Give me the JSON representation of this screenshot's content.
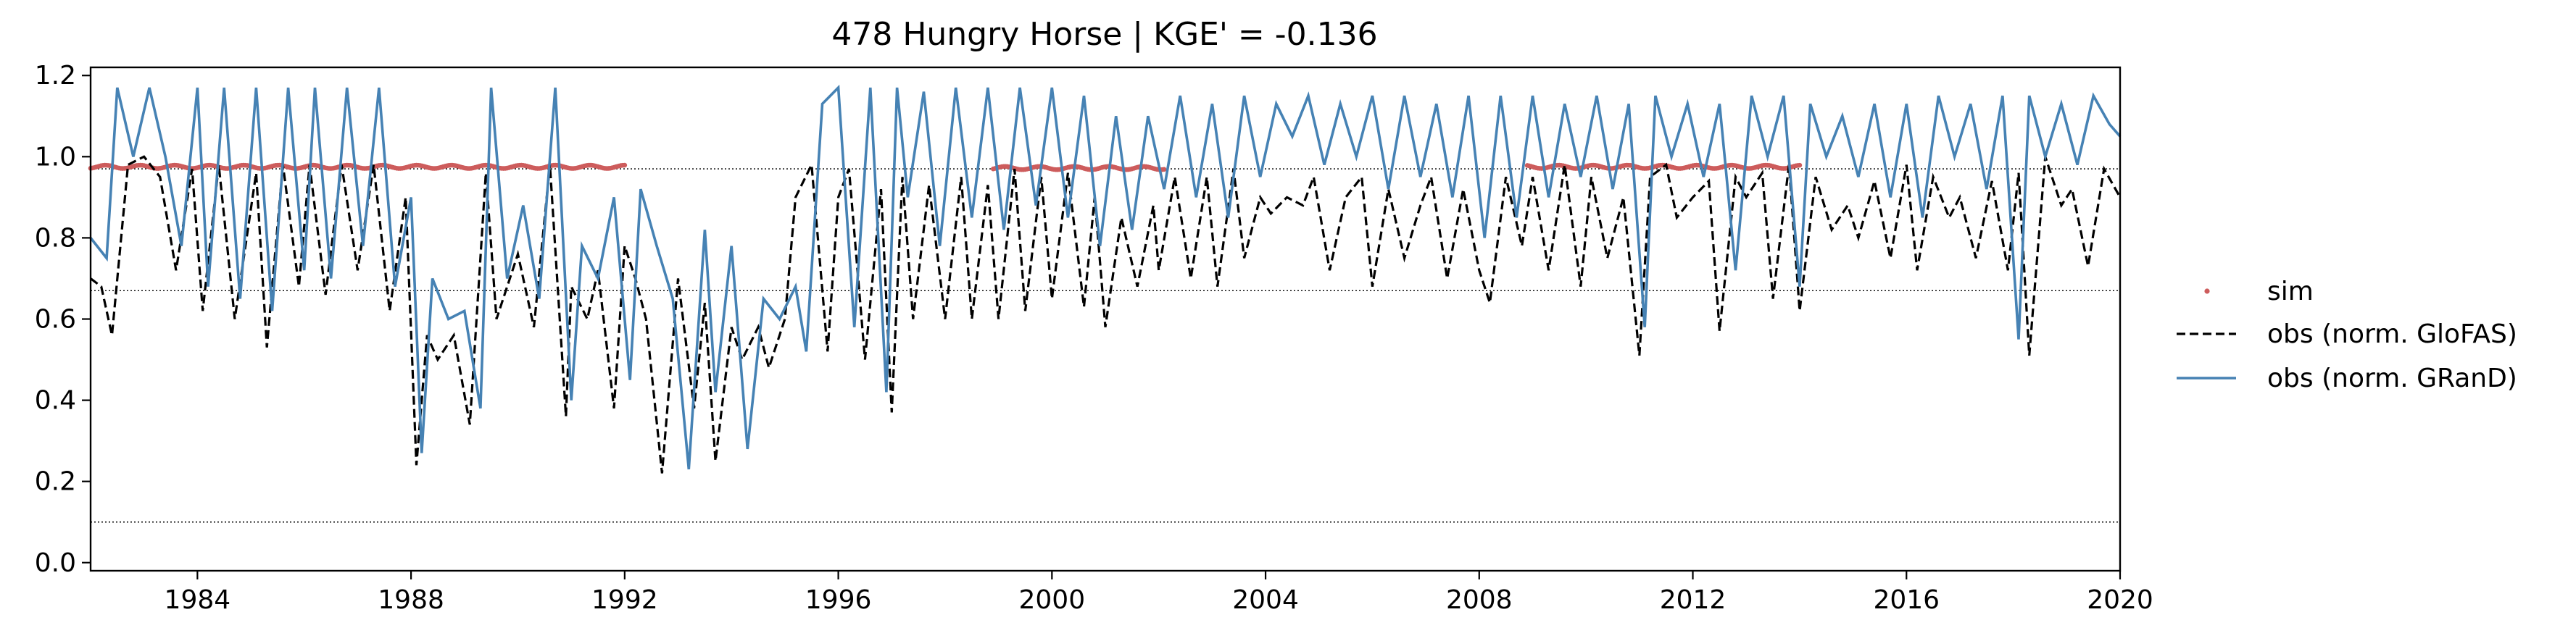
{
  "chart_data": {
    "type": "line",
    "title": "478  Hungry Horse | KGE' = -0.136",
    "xlabel": "",
    "ylabel": "",
    "xlim": [
      1982.0,
      2020.0
    ],
    "ylim": [
      -0.02,
      1.22
    ],
    "x_ticks": [
      1984,
      1988,
      1992,
      1996,
      2000,
      2004,
      2008,
      2012,
      2016,
      2020
    ],
    "y_ticks": [
      0.0,
      0.2,
      0.4,
      0.6,
      0.8,
      1.0,
      1.2
    ],
    "x_tick_labels": [
      "1984",
      "1988",
      "1992",
      "1996",
      "2000",
      "2004",
      "2008",
      "2012",
      "2016",
      "2020"
    ],
    "y_tick_labels": [
      "0.0",
      "0.2",
      "0.4",
      "0.6",
      "0.8",
      "1.0",
      "1.2"
    ],
    "grid": false,
    "legend_position": "right (outside plot)",
    "reference_lines": [
      0.97,
      0.67,
      0.1
    ],
    "series": [
      {
        "name": "sim",
        "style": "points",
        "color": "#cd5c5c",
        "segments": [
          {
            "x_start": 1982.0,
            "x_end": 1992.0,
            "y": 0.975
          },
          {
            "x_start": 1998.9,
            "x_end": 2002.1,
            "y": 0.972
          },
          {
            "x_start": 2008.9,
            "x_end": 2014.0,
            "y": 0.975
          }
        ]
      },
      {
        "name": "obs (norm. GloFAS)",
        "style": "dashed",
        "color": "#000000",
        "x": [
          1982.0,
          1982.2,
          1982.4,
          1982.7,
          1983.0,
          1983.3,
          1983.6,
          1983.9,
          1984.1,
          1984.4,
          1984.7,
          1985.1,
          1985.3,
          1985.6,
          1985.9,
          1986.1,
          1986.4,
          1986.7,
          1987.0,
          1987.3,
          1987.6,
          1987.9,
          1988.1,
          1988.3,
          1988.5,
          1988.8,
          1989.1,
          1989.4,
          1989.6,
          1990.0,
          1990.3,
          1990.6,
          1990.9,
          1991.0,
          1991.3,
          1991.5,
          1991.8,
          1992.0,
          1992.2,
          1992.4,
          1992.7,
          1993.0,
          1993.3,
          1993.5,
          1993.7,
          1994.0,
          1994.2,
          1994.5,
          1994.7,
          1995.0,
          1995.2,
          1995.5,
          1995.8,
          1996.0,
          1996.2,
          1996.5,
          1996.8,
          1997.0,
          1997.2,
          1997.4,
          1997.7,
          1998.0,
          1998.3,
          1998.5,
          1998.8,
          1999.0,
          1999.3,
          1999.5,
          1999.8,
          2000.0,
          2000.3,
          2000.6,
          2000.8,
          2001.0,
          2001.3,
          2001.6,
          2001.9,
          2002.0,
          2002.3,
          2002.6,
          2002.9,
          2003.1,
          2003.4,
          2003.6,
          2003.9,
          2004.1,
          2004.4,
          2004.7,
          2004.9,
          2005.2,
          2005.5,
          2005.8,
          2006.0,
          2006.3,
          2006.6,
          2006.9,
          2007.1,
          2007.4,
          2007.7,
          2008.0,
          2008.2,
          2008.5,
          2008.8,
          2009.0,
          2009.3,
          2009.6,
          2009.9,
          2010.1,
          2010.4,
          2010.7,
          2011.0,
          2011.2,
          2011.5,
          2011.7,
          2012.0,
          2012.3,
          2012.5,
          2012.8,
          2013.0,
          2013.3,
          2013.5,
          2013.8,
          2014.0,
          2014.3,
          2014.6,
          2014.9,
          2015.1,
          2015.4,
          2015.7,
          2016.0,
          2016.2,
          2016.5,
          2016.8,
          2017.0,
          2017.3,
          2017.6,
          2017.9,
          2018.1,
          2018.3,
          2018.6,
          2018.9,
          2019.1,
          2019.4,
          2019.7,
          2020.0
        ],
        "y": [
          0.7,
          0.68,
          0.56,
          0.98,
          1.0,
          0.95,
          0.72,
          0.97,
          0.62,
          0.98,
          0.6,
          0.96,
          0.53,
          0.98,
          0.68,
          0.98,
          0.66,
          0.98,
          0.72,
          0.98,
          0.62,
          0.9,
          0.24,
          0.56,
          0.5,
          0.56,
          0.34,
          0.96,
          0.6,
          0.76,
          0.58,
          0.98,
          0.36,
          0.68,
          0.6,
          0.72,
          0.38,
          0.78,
          0.7,
          0.6,
          0.22,
          0.7,
          0.38,
          0.64,
          0.25,
          0.58,
          0.5,
          0.58,
          0.48,
          0.6,
          0.9,
          0.98,
          0.52,
          0.9,
          0.97,
          0.5,
          0.92,
          0.37,
          0.95,
          0.6,
          0.93,
          0.6,
          0.95,
          0.6,
          0.93,
          0.6,
          0.97,
          0.62,
          0.95,
          0.65,
          0.96,
          0.63,
          0.9,
          0.58,
          0.85,
          0.68,
          0.88,
          0.72,
          0.95,
          0.7,
          0.95,
          0.68,
          0.97,
          0.75,
          0.9,
          0.86,
          0.9,
          0.88,
          0.95,
          0.72,
          0.9,
          0.95,
          0.68,
          0.92,
          0.75,
          0.88,
          0.95,
          0.7,
          0.92,
          0.72,
          0.64,
          0.95,
          0.78,
          0.95,
          0.72,
          0.98,
          0.68,
          0.95,
          0.75,
          0.9,
          0.51,
          0.95,
          0.98,
          0.85,
          0.9,
          0.94,
          0.57,
          0.95,
          0.9,
          0.96,
          0.65,
          0.98,
          0.62,
          0.95,
          0.82,
          0.88,
          0.8,
          0.94,
          0.75,
          0.98,
          0.72,
          0.95,
          0.85,
          0.9,
          0.75,
          0.94,
          0.72,
          0.96,
          0.51,
          1.0,
          0.88,
          0.92,
          0.73,
          0.97,
          0.9
        ],
        "values_approximate": true
      },
      {
        "name": "obs (norm. GRanD)",
        "style": "solid",
        "color": "#4682b4",
        "x": [
          1982.0,
          1982.3,
          1982.5,
          1982.8,
          1983.1,
          1983.4,
          1983.7,
          1984.0,
          1984.2,
          1984.5,
          1984.8,
          1985.1,
          1985.4,
          1985.7,
          1986.0,
          1986.2,
          1986.5,
          1986.8,
          1987.1,
          1987.4,
          1987.7,
          1988.0,
          1988.2,
          1988.4,
          1988.7,
          1989.0,
          1989.3,
          1989.5,
          1989.8,
          1990.1,
          1990.4,
          1990.7,
          1991.0,
          1991.2,
          1991.5,
          1991.8,
          1992.1,
          1992.3,
          1992.6,
          1992.9,
          1993.2,
          1993.5,
          1993.7,
          1994.0,
          1994.3,
          1994.6,
          1994.9,
          1995.2,
          1995.4,
          1995.7,
          1996.0,
          1996.3,
          1996.6,
          1996.9,
          1997.1,
          1997.3,
          1997.6,
          1997.9,
          1998.2,
          1998.5,
          1998.8,
          1999.1,
          1999.4,
          1999.7,
          2000.0,
          2000.3,
          2000.6,
          2000.9,
          2001.2,
          2001.5,
          2001.8,
          2002.1,
          2002.4,
          2002.7,
          2003.0,
          2003.3,
          2003.6,
          2003.9,
          2004.2,
          2004.5,
          2004.8,
          2005.1,
          2005.4,
          2005.7,
          2006.0,
          2006.3,
          2006.6,
          2006.9,
          2007.2,
          2007.5,
          2007.8,
          2008.1,
          2008.4,
          2008.7,
          2009.0,
          2009.3,
          2009.6,
          2009.9,
          2010.2,
          2010.5,
          2010.8,
          2011.1,
          2011.3,
          2011.6,
          2011.9,
          2012.2,
          2012.5,
          2012.8,
          2013.1,
          2013.4,
          2013.7,
          2014.0,
          2014.2,
          2014.5,
          2014.8,
          2015.1,
          2015.4,
          2015.7,
          2016.0,
          2016.3,
          2016.6,
          2016.9,
          2017.2,
          2017.5,
          2017.8,
          2018.1,
          2018.3,
          2018.6,
          2018.9,
          2019.2,
          2019.5,
          2019.8,
          2020.0
        ],
        "y": [
          0.8,
          0.75,
          1.17,
          1.0,
          1.17,
          1.0,
          0.78,
          1.17,
          0.68,
          1.17,
          0.65,
          1.17,
          0.62,
          1.17,
          0.72,
          1.17,
          0.7,
          1.17,
          0.78,
          1.17,
          0.68,
          0.9,
          0.27,
          0.7,
          0.6,
          0.62,
          0.38,
          1.17,
          0.7,
          0.88,
          0.65,
          1.17,
          0.4,
          0.78,
          0.7,
          0.9,
          0.45,
          0.92,
          0.78,
          0.65,
          0.23,
          0.82,
          0.42,
          0.78,
          0.28,
          0.65,
          0.6,
          0.68,
          0.52,
          1.13,
          1.17,
          0.58,
          1.17,
          0.42,
          1.17,
          0.9,
          1.16,
          0.78,
          1.17,
          0.85,
          1.17,
          0.82,
          1.17,
          0.88,
          1.17,
          0.85,
          1.15,
          0.78,
          1.1,
          0.82,
          1.1,
          0.92,
          1.15,
          0.9,
          1.13,
          0.85,
          1.15,
          0.95,
          1.13,
          1.05,
          1.15,
          0.98,
          1.13,
          1.0,
          1.15,
          0.92,
          1.15,
          0.95,
          1.13,
          0.9,
          1.15,
          0.8,
          1.15,
          0.85,
          1.15,
          0.9,
          1.13,
          0.95,
          1.15,
          0.92,
          1.13,
          0.58,
          1.15,
          1.0,
          1.13,
          0.95,
          1.13,
          0.72,
          1.15,
          1.0,
          1.15,
          0.68,
          1.13,
          1.0,
          1.1,
          0.95,
          1.13,
          0.9,
          1.13,
          0.85,
          1.15,
          1.0,
          1.13,
          0.92,
          1.15,
          0.55,
          1.15,
          1.0,
          1.13,
          0.98,
          1.15,
          1.08,
          1.05
        ],
        "values_approximate": true
      }
    ]
  }
}
